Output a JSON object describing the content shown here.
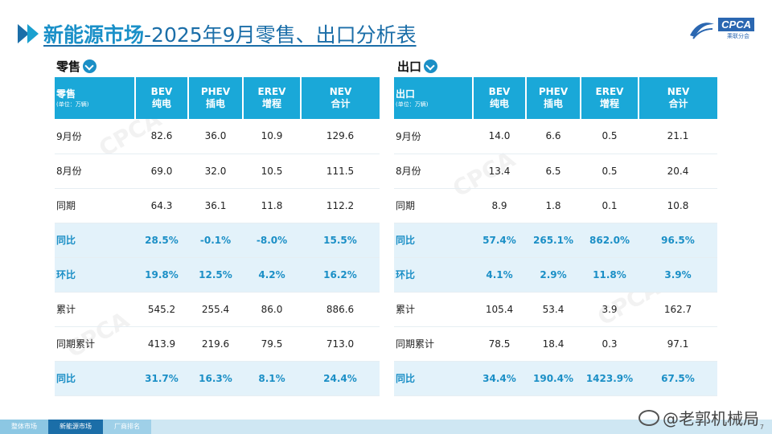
{
  "header": {
    "title_main": "新能源市场",
    "title_rest": "-2025年9月零售、出口分析表",
    "logo_text": "CPCA",
    "logo_sub": "乘联分会"
  },
  "retail": {
    "section_label": "零售",
    "corner_label": "零售",
    "unit": "(单位：万辆)",
    "columns": [
      {
        "code": "BEV",
        "name": "纯电"
      },
      {
        "code": "PHEV",
        "name": "插电"
      },
      {
        "code": "EREV",
        "name": "增程"
      },
      {
        "code": "NEV",
        "name": "合计"
      }
    ],
    "rows": [
      {
        "label": "9月份",
        "cells": [
          "82.6",
          "36.0",
          "10.9",
          "129.6"
        ]
      },
      {
        "label": "8月份",
        "cells": [
          "69.0",
          "32.0",
          "10.5",
          "111.5"
        ]
      },
      {
        "label": "同期",
        "cells": [
          "64.3",
          "36.1",
          "11.8",
          "112.2"
        ]
      },
      {
        "label": "同比",
        "cells": [
          "28.5%",
          "-0.1%",
          "-8.0%",
          "15.5%"
        ]
      },
      {
        "label": "环比",
        "cells": [
          "19.8%",
          "12.5%",
          "4.2%",
          "16.2%"
        ]
      },
      {
        "label": "累计",
        "cells": [
          "545.2",
          "255.4",
          "86.0",
          "886.6"
        ]
      },
      {
        "label": "同期累计",
        "cells": [
          "413.9",
          "219.6",
          "79.5",
          "713.0"
        ]
      },
      {
        "label": "同比",
        "cells": [
          "31.7%",
          "16.3%",
          "8.1%",
          "24.4%"
        ]
      }
    ]
  },
  "export": {
    "section_label": "出口",
    "corner_label": "出口",
    "unit": "(单位：万辆)",
    "columns": [
      {
        "code": "BEV",
        "name": "纯电"
      },
      {
        "code": "PHEV",
        "name": "插电"
      },
      {
        "code": "EREV",
        "name": "增程"
      },
      {
        "code": "NEV",
        "name": "合计"
      }
    ],
    "rows": [
      {
        "label": "9月份",
        "cells": [
          "14.0",
          "6.6",
          "0.5",
          "21.1"
        ]
      },
      {
        "label": "8月份",
        "cells": [
          "13.4",
          "6.5",
          "0.5",
          "20.4"
        ]
      },
      {
        "label": "同期",
        "cells": [
          "8.9",
          "1.8",
          "0.1",
          "10.8"
        ]
      },
      {
        "label": "同比",
        "cells": [
          "57.4%",
          "265.1%",
          "862.0%",
          "96.5%"
        ]
      },
      {
        "label": "环比",
        "cells": [
          "4.1%",
          "2.9%",
          "11.8%",
          "3.9%"
        ]
      },
      {
        "label": "累计",
        "cells": [
          "105.4",
          "53.4",
          "3.9",
          "162.7"
        ]
      },
      {
        "label": "同期累计",
        "cells": [
          "78.5",
          "18.4",
          "0.3",
          "97.1"
        ]
      },
      {
        "label": "同比",
        "cells": [
          "34.4%",
          "190.4%",
          "1423.9%",
          "67.5%"
        ]
      }
    ]
  },
  "highlight_rows": [
    3,
    4,
    7
  ],
  "footer": {
    "tabs": [
      "整体市场",
      "新能源市场",
      "厂商排名"
    ],
    "active_tab": 1,
    "page_number": "7"
  },
  "credit": "@老郭机械局",
  "watermark_text": "CPCA",
  "colors": {
    "header_bg": "#1aa8d8",
    "highlight_bg": "#e3f2fa",
    "highlight_text": "#1b8fc6",
    "title_color": "#1b6ea8"
  }
}
